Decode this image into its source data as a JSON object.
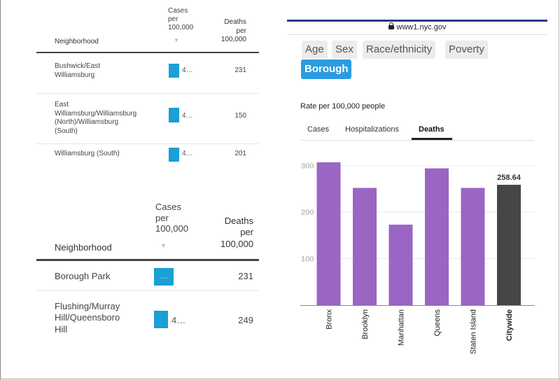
{
  "table_small": {
    "headers": {
      "neighborhood": "Neighborhood",
      "cases_lines": [
        "Cases",
        "per",
        "100,000"
      ],
      "sort_glyph": "▼",
      "deaths_lines": [
        "Deaths",
        "per",
        "100,000"
      ]
    },
    "rows": [
      {
        "name_lines": [
          "Bushwick/East",
          "Williamsburg"
        ],
        "cases_text": "4…",
        "deaths": "231"
      },
      {
        "name_lines": [
          "East",
          "Williamsburg/Williamsburg",
          "(North)/Williamsburg",
          "(South)"
        ],
        "cases_text": "4…",
        "deaths": "150"
      },
      {
        "name_lines": [
          "Williamsburg (South)"
        ],
        "cases_text": "4…",
        "deaths": "201"
      }
    ]
  },
  "table_large": {
    "headers": {
      "neighborhood": "Neighborhood",
      "cases_lines": [
        "Cases",
        "per",
        "100,000"
      ],
      "sort_glyph": "▼",
      "deaths_lines": [
        "Deaths",
        "per",
        "100,000"
      ]
    },
    "rows": [
      {
        "name_lines": [
          "Borough Park"
        ],
        "cases_text": "…",
        "deaths": "231"
      },
      {
        "name_lines": [
          "Flushing/Murray",
          "Hill/Queensboro",
          "Hill"
        ],
        "cases_text": "4…",
        "deaths": "249"
      }
    ]
  },
  "browser": {
    "url": "www1.nyc.gov",
    "lock_icon": "lock-icon",
    "accent_color": "#2b3a8c"
  },
  "filters": [
    {
      "label": "Age",
      "active": false
    },
    {
      "label": "Sex",
      "active": false
    },
    {
      "label": "Race/ethnicity",
      "active": false
    },
    {
      "label": "Poverty",
      "active": false
    },
    {
      "label": "Borough",
      "active": true
    }
  ],
  "rate_label": "Rate per 100,000 people",
  "subtabs": [
    {
      "label": "Cases",
      "active": false
    },
    {
      "label": "Hospitalizations",
      "active": false
    },
    {
      "label": "Deaths",
      "active": true
    }
  ],
  "chart_data": {
    "type": "bar",
    "categories": [
      "Bronx",
      "Brooklyn",
      "Manhattan",
      "Queens",
      "Staten Island",
      "Citywide"
    ],
    "values": [
      307,
      252,
      173,
      294,
      252,
      258.64
    ],
    "data_labels": [
      "",
      "",
      "",
      "",
      "",
      "258.64"
    ],
    "ylim": [
      0,
      340
    ],
    "yticks": [
      100,
      200,
      300
    ],
    "grid": true,
    "colors": {
      "bar": "#9b65c3",
      "highlight": "#464646"
    },
    "highlight_index": 5,
    "title": "",
    "xlabel": "",
    "ylabel": ""
  },
  "table_bar_color": "#1a9fd6"
}
